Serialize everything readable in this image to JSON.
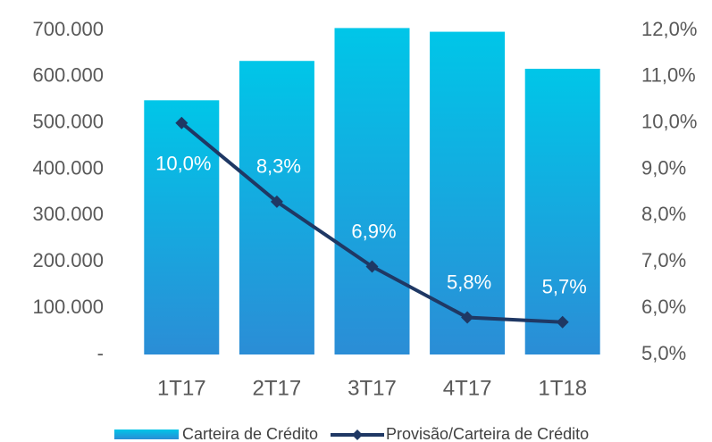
{
  "chart_data": {
    "type": "bar_line",
    "categories": [
      "1T17",
      "2T17",
      "3T17",
      "4T17",
      "1T18"
    ],
    "series": [
      {
        "name": "Carteira de Crédito",
        "type": "bar",
        "color": [
          "#00c6e8",
          "#2b8dd6"
        ],
        "values": [
          549000,
          634000,
          705000,
          697000,
          617000
        ]
      },
      {
        "name": "Provisão/Carteira de Crédito",
        "type": "line",
        "axis": "y2",
        "color": "#1f3864",
        "values": [
          10.0,
          8.3,
          6.9,
          5.8,
          5.7
        ],
        "value_labels": [
          "10,0%",
          "8,3%",
          "6,9%",
          "5,8%",
          "5,7%"
        ]
      }
    ],
    "ylim": [
      0,
      700000
    ],
    "yticks": [
      {
        "value": 0,
        "label": "-"
      },
      {
        "value": 100000,
        "label": "100.000"
      },
      {
        "value": 200000,
        "label": "200.000"
      },
      {
        "value": 300000,
        "label": "300.000"
      },
      {
        "value": 400000,
        "label": "400.000"
      },
      {
        "value": 500000,
        "label": "500.000"
      },
      {
        "value": 600000,
        "label": "600.000"
      },
      {
        "value": 700000,
        "label": "700.000"
      }
    ],
    "y2lim": [
      5,
      12
    ],
    "y2ticks": [
      {
        "value": 5,
        "label": "5,0%"
      },
      {
        "value": 6,
        "label": "6,0%"
      },
      {
        "value": 7,
        "label": "7,0%"
      },
      {
        "value": 8,
        "label": "8,0%"
      },
      {
        "value": 9,
        "label": "9,0%"
      },
      {
        "value": 10,
        "label": "10,0%"
      },
      {
        "value": 11,
        "label": "11,0%"
      },
      {
        "value": 12,
        "label": "12,0%"
      }
    ],
    "legend": "bottom"
  }
}
